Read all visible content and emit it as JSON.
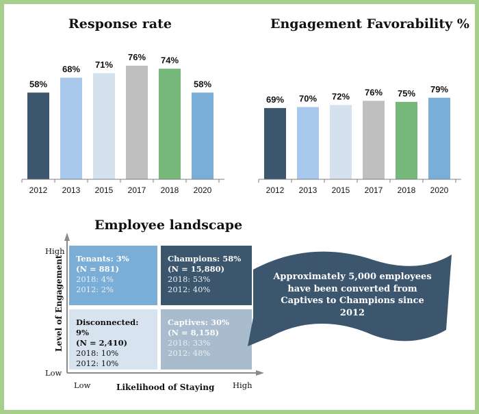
{
  "chart_data": [
    {
      "type": "bar",
      "title": "Response rate",
      "categories": [
        "2012",
        "2013",
        "2015",
        "2017",
        "2018",
        "2020"
      ],
      "values": [
        58,
        68,
        71,
        76,
        74,
        58
      ],
      "value_labels": [
        "58%",
        "68%",
        "71%",
        "76%",
        "74%",
        "58%"
      ],
      "ylim": [
        0,
        76
      ],
      "colors": [
        "#3c566e",
        "#a9c9ec",
        "#d5e2ee",
        "#bfbfbf",
        "#75b879",
        "#7aaed6"
      ]
    },
    {
      "type": "bar",
      "title": "Engagement Favorability %",
      "categories": [
        "2012",
        "2013",
        "2015",
        "2017",
        "2018",
        "2020"
      ],
      "values": [
        69,
        70,
        72,
        76,
        75,
        79
      ],
      "value_labels": [
        "69%",
        "70%",
        "72%",
        "76%",
        "75%",
        "79%"
      ],
      "ylim": [
        0,
        110
      ],
      "colors": [
        "#3c566e",
        "#a9c9ec",
        "#d5e2ee",
        "#bfbfbf",
        "#75b879",
        "#7aaed6"
      ]
    }
  ],
  "landscape": {
    "title": "Employee landscape",
    "y_axis_title": "Level of Engagement",
    "x_axis_title": "Likelihood of Staying",
    "y_high": "High",
    "y_low": "Low",
    "x_low": "Low",
    "x_high": "High",
    "quadrants": {
      "tenants": {
        "title": "Tenants: 3%",
        "n": "(N = 881)",
        "y2018": "2018: 4%",
        "y2012": "2012: 2%"
      },
      "champions": {
        "title": "Champions: 58%",
        "n": "(N = 15,880)",
        "y2018": "2018: 53%",
        "y2012": "2012: 40%"
      },
      "disconnected": {
        "title": "Disconnected: 9%",
        "n": "(N = 2,410)",
        "y2018": "2018: 10%",
        "y2012": "2012: 10%"
      },
      "captives": {
        "title": "Captives: 30%",
        "n": "(N = 8,158)",
        "y2018": "2018: 33%",
        "y2012": "2012: 48%"
      }
    },
    "callout": "Approximately 5,000 employees have been converted from Captives to Champions since 2012"
  },
  "colors": {
    "frame": "#a6cf8c",
    "banner": "#3c566e"
  }
}
